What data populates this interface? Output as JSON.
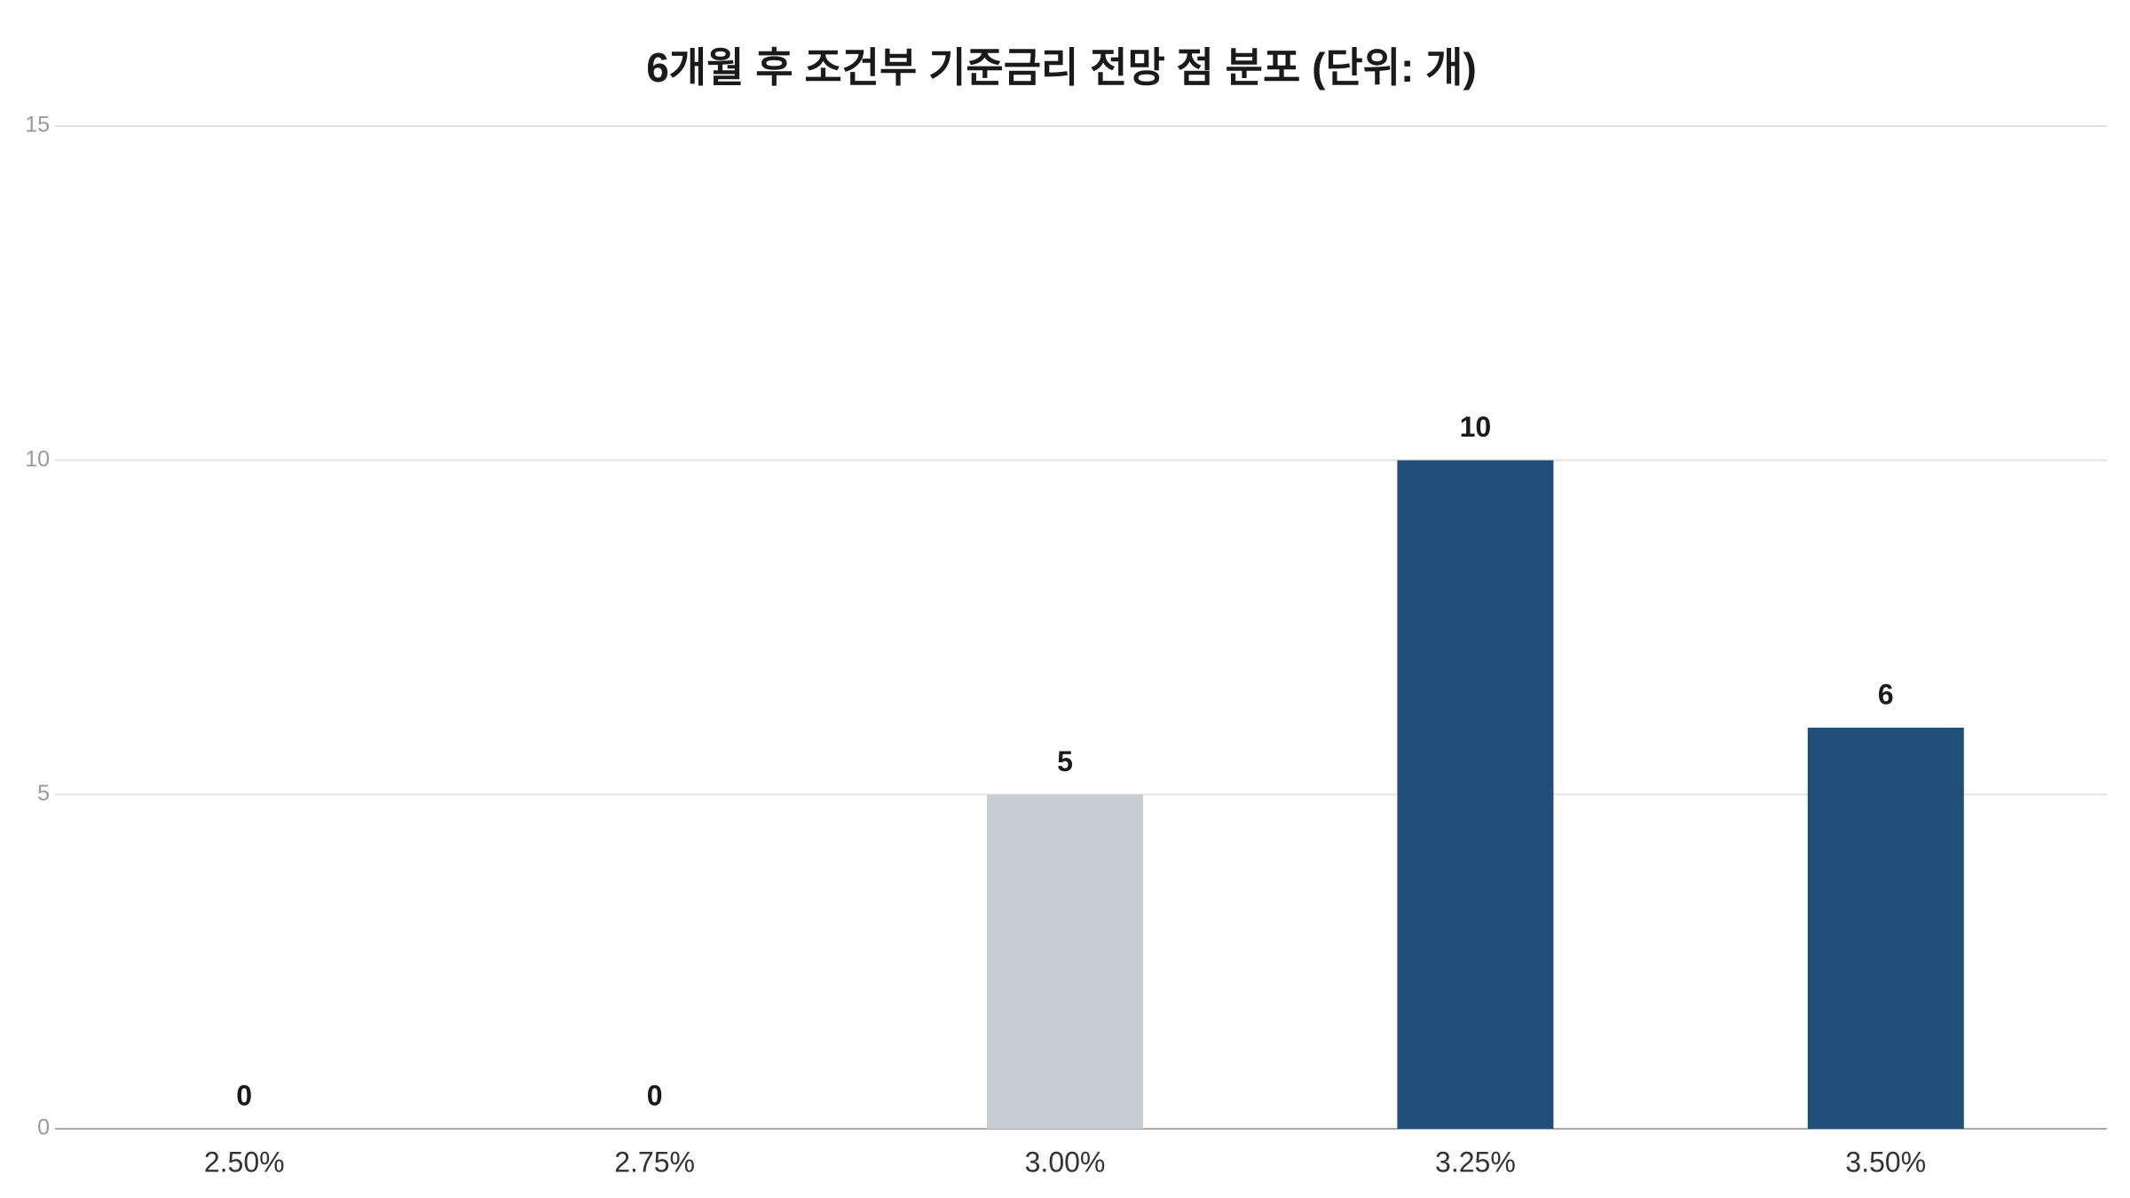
{
  "chart_data": {
    "type": "bar",
    "title": "6개월 후 조건부 기준금리 전망 점 분포 (단위: 개)",
    "categories": [
      "2.50%",
      "2.75%",
      "3.00%",
      "3.25%",
      "3.50%"
    ],
    "values": [
      0,
      0,
      5,
      10,
      6
    ],
    "colors": [
      "#1f4e79",
      "#1f4e79",
      "#c8cdd4",
      "#1f4e79",
      "#1f4e79"
    ],
    "ylim": [
      0,
      15
    ],
    "yticks": [
      0,
      5,
      10,
      15
    ],
    "grid": true
  }
}
